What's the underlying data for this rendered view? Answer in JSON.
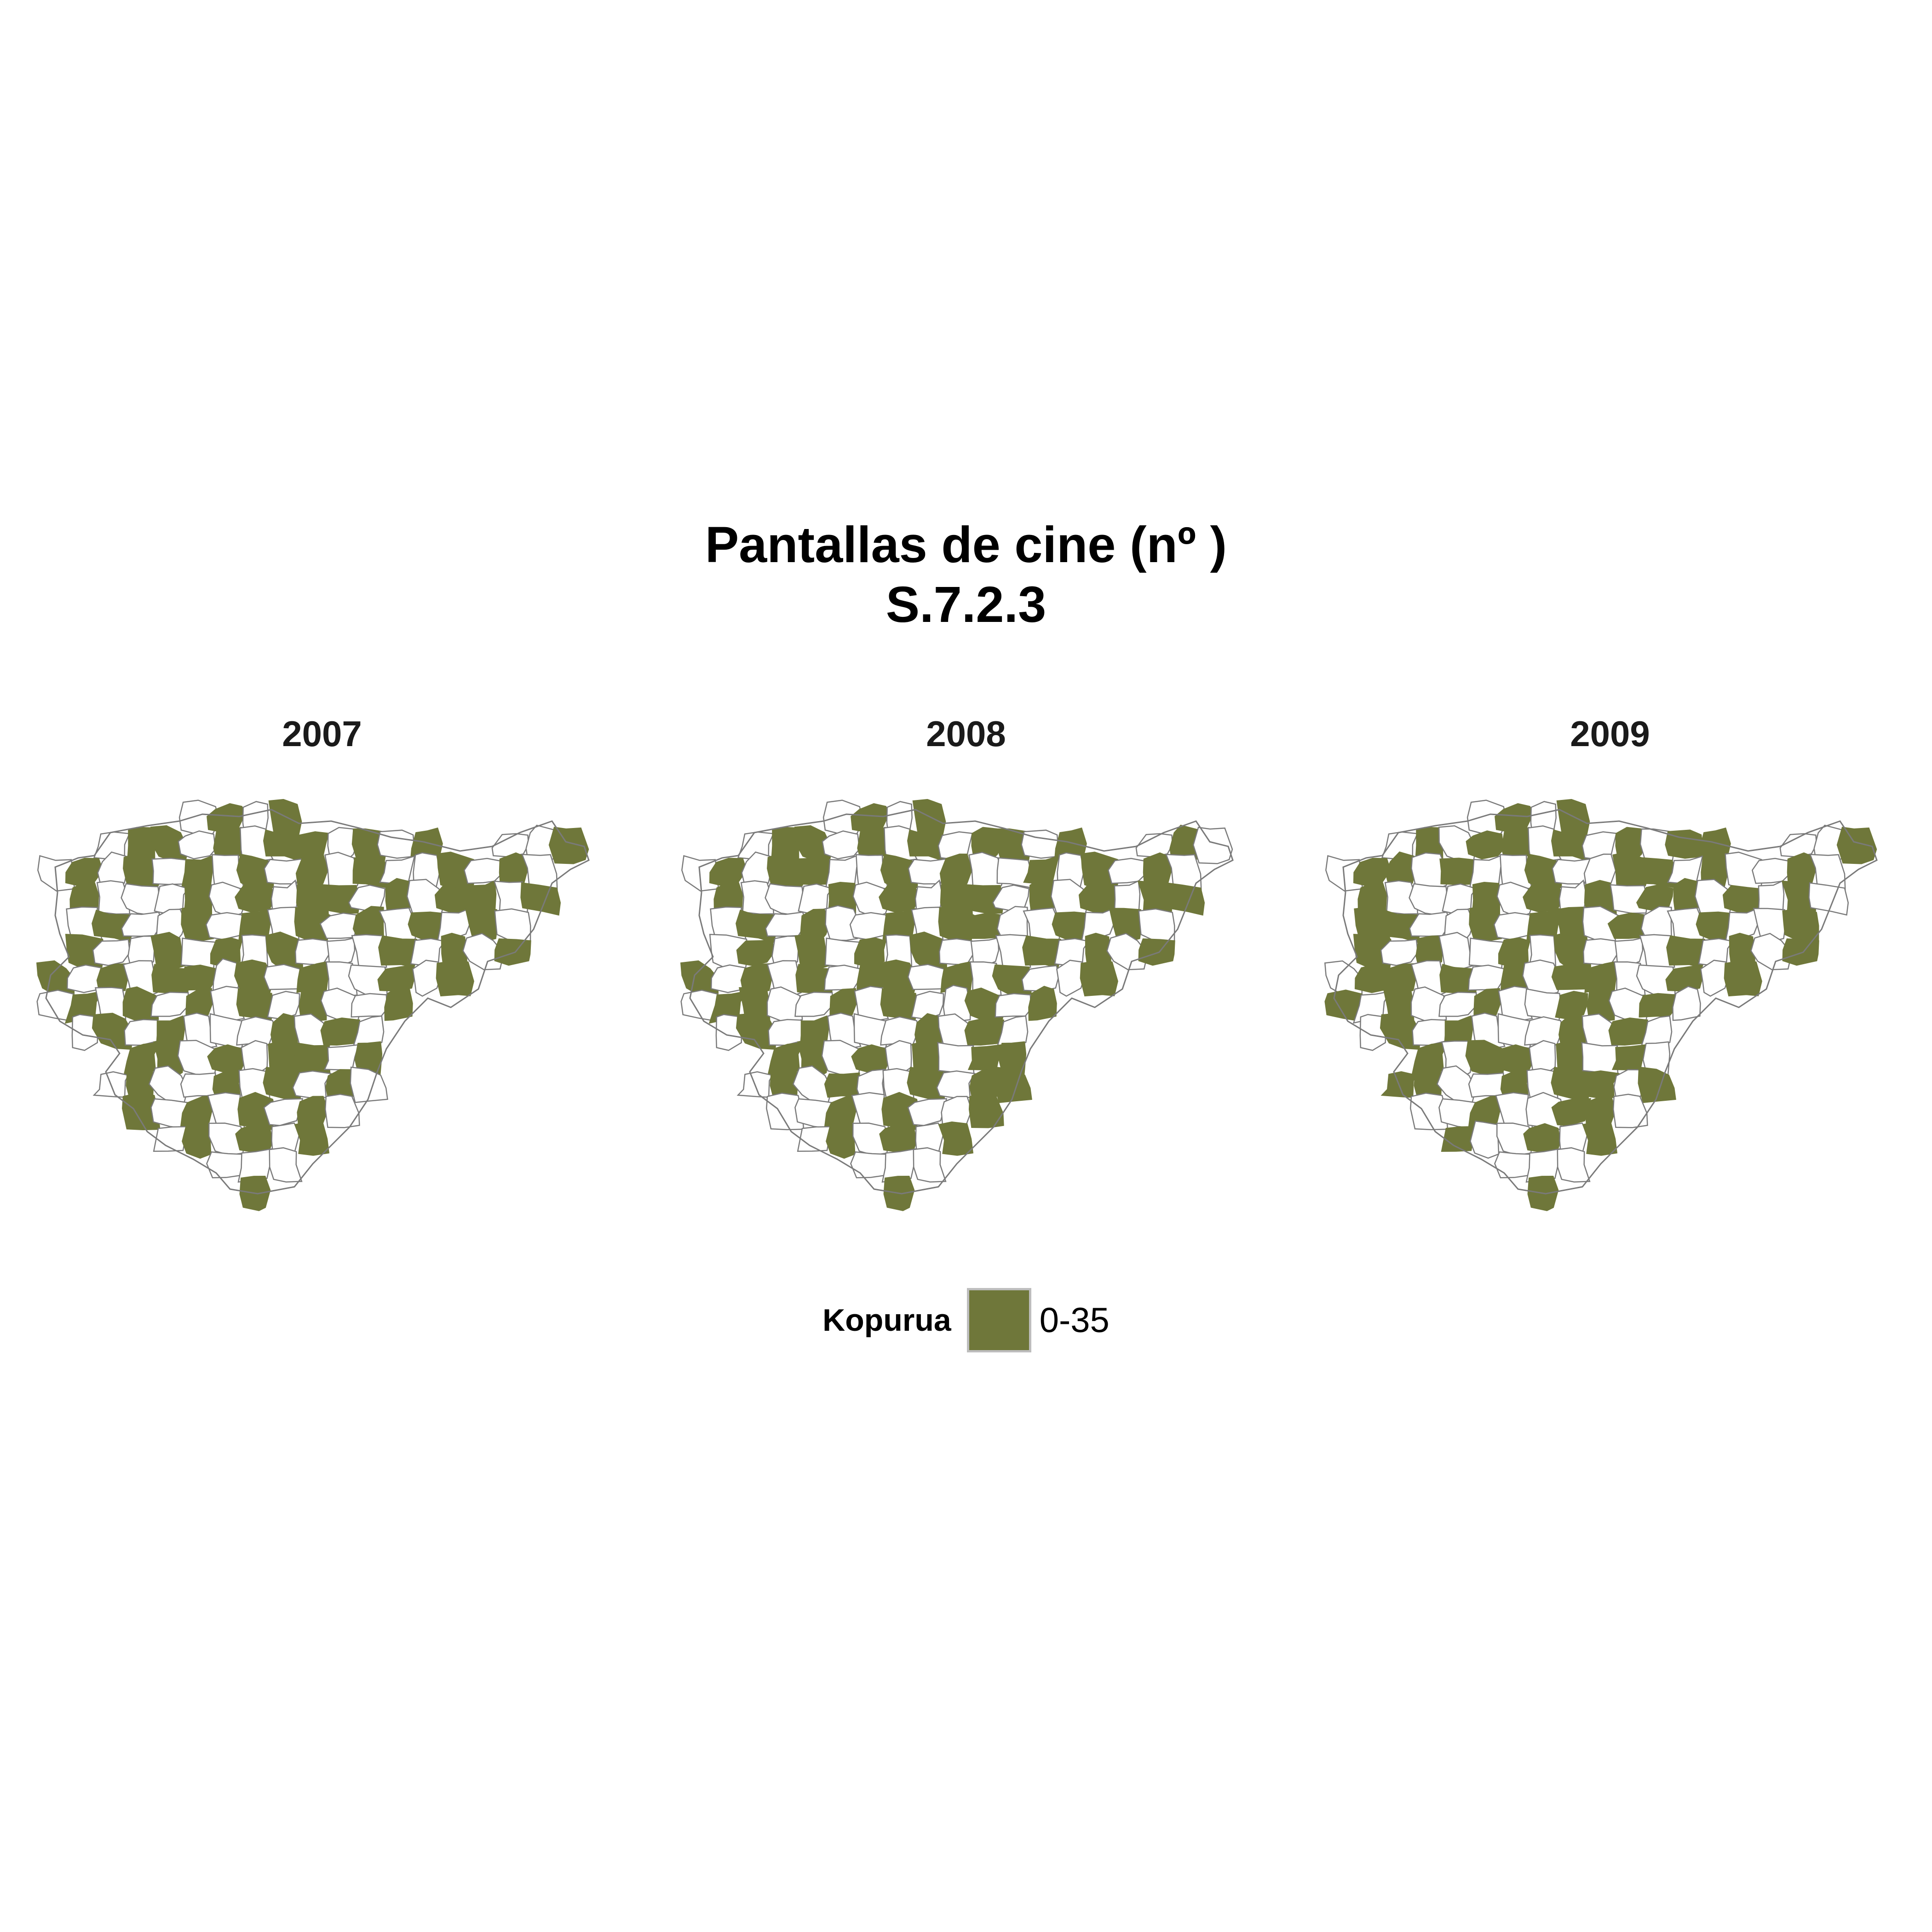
{
  "title": {
    "line1": "Pantallas de cine (nº )",
    "line2": "S.7.2.3"
  },
  "panels": [
    {
      "year": "2007",
      "active": [
        1,
        3,
        5,
        6,
        8,
        10,
        11,
        13,
        15,
        18,
        20,
        22,
        24,
        26,
        28,
        30,
        33,
        35,
        37
      ]
    },
    {
      "year": "2008",
      "active": [
        1,
        3,
        5,
        6,
        8,
        10,
        12,
        13,
        15,
        17,
        20,
        22,
        23,
        26,
        28,
        31,
        33,
        35,
        37
      ]
    },
    {
      "year": "2009",
      "active": [
        1,
        3,
        5,
        7,
        8,
        10,
        12,
        14,
        15,
        18,
        20,
        21,
        23,
        26,
        29,
        30,
        32,
        35,
        37
      ]
    }
  ],
  "legend": {
    "title": "Kopurua",
    "label": "0-35",
    "color": "#6f773a"
  }
}
